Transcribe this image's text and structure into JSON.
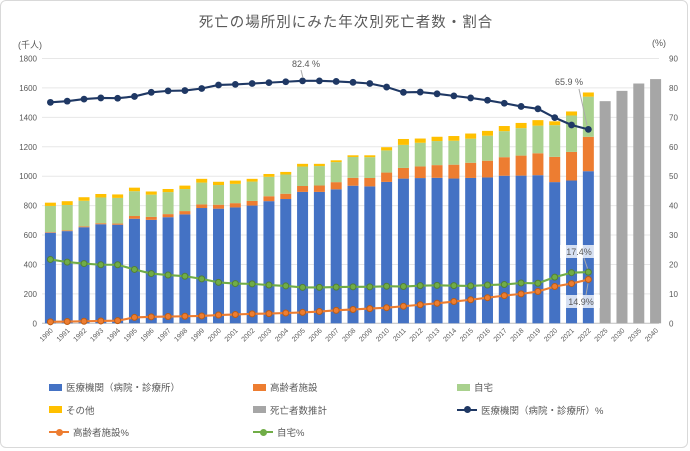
{
  "title": "死亡の場所別にみた年次別死亡者数・割合",
  "left_axis": {
    "unit": "(千人)",
    "min": 0,
    "max": 1800,
    "step": 200
  },
  "right_axis": {
    "unit": "(%)",
    "min": 0,
    "max": 90,
    "step": 10
  },
  "colors": {
    "hospital_bar": "#4472C4",
    "facility_bar": "#ED7D31",
    "home_bar": "#A9D18E",
    "other_bar": "#FFC000",
    "projection_bar": "#A6A6A6",
    "hospital_line": "#1F3864",
    "facility_line": "#ED7D31",
    "facility_marker_edge": "#BE5D14",
    "home_line": "#70AD47",
    "home_marker_edge": "#538135",
    "grid": "#E7E7E7",
    "axis_line": "#BFBFBF",
    "text": "#595959",
    "callout": "#ABABAB"
  },
  "chart_data": {
    "type": "combo: stacked bar (deaths, thousands) + line (share %)",
    "stack_order_bottom_to_top": [
      "医療機関（病院・診療所）",
      "高齢者施設",
      "自宅",
      "その他"
    ],
    "note": "その他% = 100 − (医療機関% + 高齢者施設% + 自宅%)",
    "years": [
      1990,
      1991,
      1992,
      1993,
      1994,
      1995,
      1996,
      1997,
      1998,
      1999,
      2000,
      2001,
      2002,
      2003,
      2004,
      2005,
      2006,
      2007,
      2008,
      2009,
      2010,
      2011,
      2012,
      2013,
      2014,
      2015,
      2016,
      2017,
      2018,
      2019,
      2020,
      2021,
      2022
    ],
    "total_deaths_thousand": [
      820,
      830,
      857,
      879,
      876,
      922,
      896,
      913,
      936,
      982,
      962,
      970,
      982,
      1015,
      1029,
      1084,
      1084,
      1108,
      1142,
      1142,
      1197,
      1253,
      1256,
      1268,
      1273,
      1290,
      1308,
      1341,
      1362,
      1381,
      1373,
      1440,
      1569
    ],
    "hospital_pct": [
      75.1,
      75.5,
      76.2,
      76.6,
      76.5,
      77.1,
      78.5,
      79.0,
      79.1,
      79.8,
      81.0,
      81.2,
      81.5,
      81.8,
      82.1,
      82.4,
      82.4,
      82.2,
      81.9,
      81.5,
      80.3,
      78.5,
      78.6,
      78.0,
      77.3,
      76.6,
      75.8,
      74.8,
      73.7,
      72.9,
      69.9,
      67.4,
      65.9
    ],
    "facility_pct": [
      0.5,
      0.6,
      0.7,
      0.8,
      0.9,
      2.0,
      2.2,
      2.3,
      2.4,
      2.5,
      2.8,
      3.0,
      3.2,
      3.3,
      3.5,
      3.7,
      4.0,
      4.4,
      4.7,
      5.0,
      5.3,
      5.8,
      6.3,
      6.8,
      7.4,
      8.0,
      8.7,
      9.4,
      10.0,
      10.8,
      12.5,
      13.5,
      14.9
    ],
    "home_pct": [
      21.7,
      20.8,
      20.3,
      19.9,
      19.9,
      18.3,
      16.9,
      16.4,
      16.0,
      15.1,
      13.9,
      13.5,
      13.4,
      13.0,
      12.7,
      12.2,
      12.2,
      12.3,
      12.4,
      12.4,
      12.6,
      12.5,
      12.8,
      12.9,
      12.8,
      12.7,
      13.0,
      13.2,
      13.7,
      13.6,
      15.7,
      17.2,
      17.4
    ],
    "projections": {
      "name": "死亡者数推計",
      "years": [
        2025,
        2030,
        2035,
        2040
      ],
      "total_deaths_thousand": [
        1510,
        1580,
        1630,
        1660
      ]
    }
  },
  "annotations": [
    {
      "id": "peak_hospital",
      "label": "82.4 %",
      "series": "医療機関（病院・診療所）%",
      "year": 2005
    },
    {
      "id": "end_hospital",
      "label": "65.9 %",
      "series": "医療機関（病院・診療所）%",
      "year": 2022
    },
    {
      "id": "end_home",
      "label": "17.4%",
      "series": "自宅%",
      "year": 2022
    },
    {
      "id": "end_facility",
      "label": "14.9%",
      "series": "高齢者施設%",
      "year": 2022
    }
  ],
  "legend": [
    {
      "label": "医療機関（病院・診療所）",
      "swatch": "bar",
      "color": "#4472C4"
    },
    {
      "label": "高齢者施設",
      "swatch": "bar",
      "color": "#ED7D31"
    },
    {
      "label": "自宅",
      "swatch": "bar",
      "color": "#A9D18E"
    },
    {
      "label": "その他",
      "swatch": "bar",
      "color": "#FFC000"
    },
    {
      "label": "死亡者数推計",
      "swatch": "bar",
      "color": "#A6A6A6"
    },
    {
      "label": "医療機関（病院・診療所）%",
      "swatch": "line",
      "color": "#1F3864"
    },
    {
      "label": "高齢者施設%",
      "swatch": "line",
      "color": "#ED7D31"
    },
    {
      "label": "自宅%",
      "swatch": "line",
      "color": "#70AD47"
    }
  ]
}
